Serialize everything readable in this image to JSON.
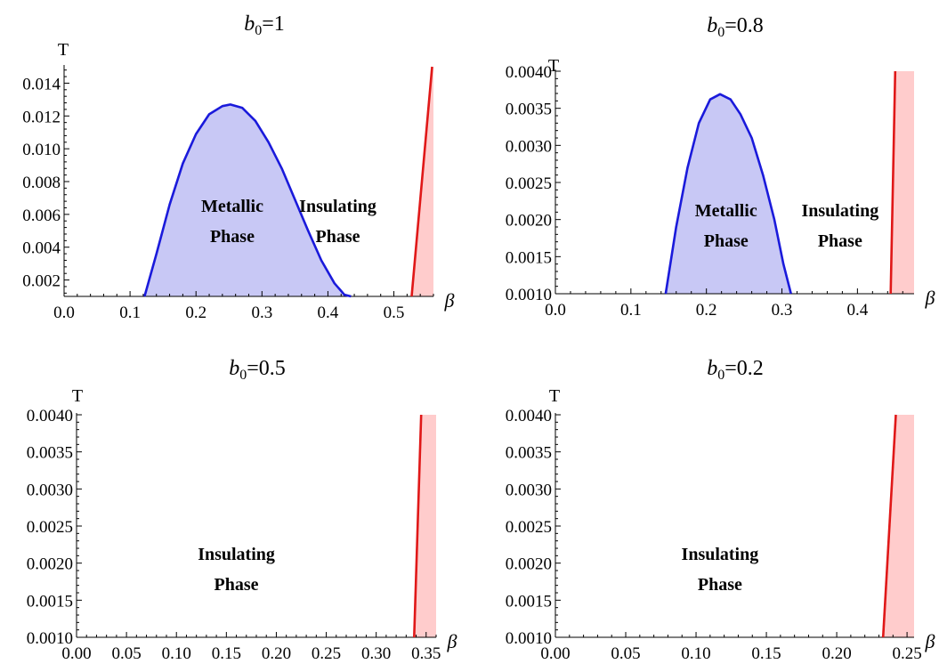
{
  "chart_data": [
    {
      "type": "area",
      "title_base": "b",
      "title_sub": "0",
      "title_value": "=1",
      "xlabel": "β",
      "ylabel": "T",
      "xlim": [
        0.0,
        0.56
      ],
      "ylim": [
        0.001,
        0.015
      ],
      "x_ticks": [
        0.0,
        0.1,
        0.2,
        0.3,
        0.4,
        0.5
      ],
      "x_tick_labels": [
        "0.0",
        "0.1",
        "0.2",
        "0.3",
        "0.4",
        "0.5"
      ],
      "y_ticks": [
        0.002,
        0.004,
        0.006,
        0.008,
        0.01,
        0.012,
        0.014
      ],
      "y_tick_labels": [
        "0.002",
        "0.004",
        "0.006",
        "0.008",
        "0.010",
        "0.012",
        "0.014"
      ],
      "series": [
        {
          "kind": "metallic-boundary",
          "color": "#1a1adb",
          "fill": "#c8c8f5",
          "x": [
            0.122,
            0.14,
            0.16,
            0.18,
            0.2,
            0.22,
            0.24,
            0.252,
            0.27,
            0.29,
            0.31,
            0.33,
            0.35,
            0.37,
            0.39,
            0.41,
            0.425,
            0.435
          ],
          "y": [
            0.001,
            0.0036,
            0.0066,
            0.0091,
            0.0109,
            0.0121,
            0.0126,
            0.0127,
            0.0125,
            0.0117,
            0.0104,
            0.0088,
            0.0069,
            0.005,
            0.0032,
            0.0018,
            0.0011,
            0.001
          ]
        },
        {
          "kind": "insulating-boundary",
          "color": "#e01818",
          "fill": "#ffcccc",
          "x": [
            0.527,
            0.558
          ],
          "y": [
            0.001,
            0.015
          ]
        }
      ],
      "annotations": [
        {
          "lines": [
            "Metallic",
            "Phase"
          ],
          "x": 0.255,
          "y": 0.0055
        },
        {
          "lines": [
            "Insulating",
            "Phase"
          ],
          "x": 0.415,
          "y": 0.0055
        }
      ]
    },
    {
      "type": "area",
      "title_base": "b",
      "title_sub": "0",
      "title_value": "=0.8",
      "xlabel": "β",
      "ylabel": "T",
      "xlim": [
        0.0,
        0.475
      ],
      "ylim": [
        0.001,
        0.004
      ],
      "x_ticks": [
        0.0,
        0.1,
        0.2,
        0.3,
        0.4
      ],
      "x_tick_labels": [
        "0.0",
        "0.1",
        "0.2",
        "0.3",
        "0.4"
      ],
      "y_ticks": [
        0.001,
        0.0015,
        0.002,
        0.0025,
        0.003,
        0.0035,
        0.004
      ],
      "y_tick_labels": [
        "0.0010",
        "0.0015",
        "0.0020",
        "0.0025",
        "0.0030",
        "0.0035",
        "0.0040"
      ],
      "series": [
        {
          "kind": "metallic-boundary",
          "color": "#1a1adb",
          "fill": "#c8c8f5",
          "x": [
            0.146,
            0.16,
            0.175,
            0.19,
            0.205,
            0.218,
            0.232,
            0.245,
            0.26,
            0.275,
            0.29,
            0.302,
            0.312
          ],
          "y": [
            0.001,
            0.0019,
            0.0027,
            0.0033,
            0.00362,
            0.00369,
            0.00362,
            0.00342,
            0.0031,
            0.0026,
            0.002,
            0.0014,
            0.001
          ]
        },
        {
          "kind": "insulating-boundary",
          "color": "#e01818",
          "fill": "#ffcccc",
          "x": [
            0.444,
            0.45
          ],
          "y": [
            0.001,
            0.004
          ]
        }
      ],
      "annotations": [
        {
          "lines": [
            "Metallic",
            "Phase"
          ],
          "x": 0.226,
          "y": 0.0019
        },
        {
          "lines": [
            "Insulating",
            "Phase"
          ],
          "x": 0.377,
          "y": 0.0019
        }
      ]
    },
    {
      "type": "area",
      "title_base": "b",
      "title_sub": "0",
      "title_value": "=0.5",
      "xlabel": "β",
      "ylabel": "T",
      "xlim": [
        0.0,
        0.36
      ],
      "ylim": [
        0.001,
        0.004
      ],
      "x_ticks": [
        0.0,
        0.05,
        0.1,
        0.15,
        0.2,
        0.25,
        0.3,
        0.35
      ],
      "x_tick_labels": [
        "0.00",
        "0.05",
        "0.10",
        "0.15",
        "0.20",
        "0.25",
        "0.30",
        "0.35"
      ],
      "y_ticks": [
        0.001,
        0.0015,
        0.002,
        0.0025,
        0.003,
        0.0035,
        0.004
      ],
      "y_tick_labels": [
        "0.0010",
        "0.0015",
        "0.0020",
        "0.0025",
        "0.0030",
        "0.0035",
        "0.0040"
      ],
      "series": [
        {
          "kind": "insulating-boundary",
          "color": "#e01818",
          "fill": "#ffcccc",
          "x": [
            0.338,
            0.345
          ],
          "y": [
            0.001,
            0.004
          ]
        }
      ],
      "annotations": [
        {
          "lines": [
            "Insulating",
            "Phase"
          ],
          "x": 0.16,
          "y": 0.0019
        }
      ]
    },
    {
      "type": "area",
      "title_base": "b",
      "title_sub": "0",
      "title_value": "=0.2",
      "xlabel": "β",
      "ylabel": "T",
      "xlim": [
        0.0,
        0.255
      ],
      "ylim": [
        0.001,
        0.004
      ],
      "x_ticks": [
        0.0,
        0.05,
        0.1,
        0.15,
        0.2,
        0.25
      ],
      "x_tick_labels": [
        "0.00",
        "0.05",
        "0.10",
        "0.15",
        "0.20",
        "0.25"
      ],
      "y_ticks": [
        0.001,
        0.0015,
        0.002,
        0.0025,
        0.003,
        0.0035,
        0.004
      ],
      "y_tick_labels": [
        "0.0010",
        "0.0015",
        "0.0020",
        "0.0025",
        "0.0030",
        "0.0035",
        "0.0040"
      ],
      "series": [
        {
          "kind": "insulating-boundary",
          "color": "#e01818",
          "fill": "#ffcccc",
          "x": [
            0.233,
            0.242
          ],
          "y": [
            0.001,
            0.004
          ]
        }
      ],
      "annotations": [
        {
          "lines": [
            "Insulating",
            "Phase"
          ],
          "x": 0.117,
          "y": 0.0019
        }
      ]
    }
  ]
}
